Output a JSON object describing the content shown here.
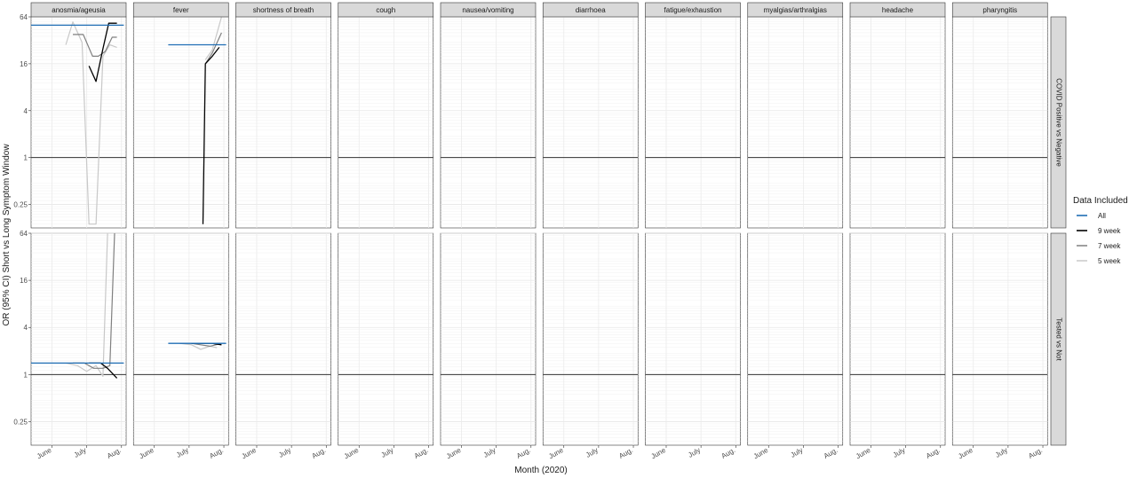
{
  "chart_data": {
    "type": "line",
    "facets": {
      "columns": [
        "anosmia/ageusia",
        "fever",
        "shortness of breath",
        "cough",
        "nausea/vomiting",
        "diarrhoea",
        "fatigue/exhaustion",
        "myalgias/arthralgias",
        "headache",
        "pharyngitis"
      ],
      "rows": [
        "COVID Positive vs Negative",
        "Tested vs Not"
      ]
    },
    "xlabel": "Month (2020)",
    "ylabel": "OR (95% CI) Short vs Long Symptom Window",
    "x_ticks": [
      "June",
      "July",
      "Aug."
    ],
    "x_tick_positions_days": [
      18,
      48,
      78
    ],
    "xlim_days": [
      0,
      82
    ],
    "y_scale": "log2",
    "y_ticks": [
      "0.25",
      "1",
      "4",
      "16",
      "64"
    ],
    "y_tick_values": [
      0.25,
      1,
      4,
      16,
      64
    ],
    "ylim": [
      0.125,
      64
    ],
    "reference_line": 1,
    "legend": {
      "title": "Data Included",
      "position": "right",
      "entries": [
        "All",
        "9 week",
        "7 week",
        "5 week"
      ]
    },
    "series_styles": {
      "All": {
        "color": "#1f6eb4",
        "width": 1.3
      },
      "9 week": {
        "color": "#000000",
        "width": 1.3
      },
      "7 week": {
        "color": "#808080",
        "width": 1.2
      },
      "5 week": {
        "color": "#c8c8c8",
        "width": 1.2
      }
    },
    "x_unit": "days since May 14, 2020 (approx.)",
    "panels": [
      {
        "row": 0,
        "col": 0,
        "series": {
          "All": [
            [
              0,
              50
            ],
            [
              80,
              50
            ]
          ],
          "9 week": [
            [
              50,
              15
            ],
            [
              56,
              9.5
            ],
            [
              62,
              25
            ],
            [
              67,
              53
            ],
            [
              74,
              53
            ]
          ],
          "7 week": [
            [
              36,
              38
            ],
            [
              45,
              38
            ],
            [
              53,
              20
            ],
            [
              58,
              20
            ],
            [
              64,
              23
            ],
            [
              70,
              35
            ],
            [
              74,
              35
            ]
          ],
          "5 week": [
            [
              30,
              28
            ],
            [
              36,
              55
            ],
            [
              44,
              30
            ],
            [
              50,
              0.14
            ],
            [
              56,
              0.14
            ],
            [
              62,
              20
            ],
            [
              68,
              28
            ],
            [
              74,
              26
            ]
          ]
        }
      },
      {
        "row": 0,
        "col": 1,
        "series": {
          "All": [
            [
              30,
              28
            ],
            [
              80,
              28
            ]
          ],
          "9 week": [
            [
              60,
              0.14
            ],
            [
              62,
              16
            ],
            [
              68,
              20
            ],
            [
              74,
              26
            ]
          ],
          "7 week": [
            [
              62,
              16
            ],
            [
              68,
              22
            ],
            [
              76,
              40
            ]
          ],
          "5 week": [
            [
              62,
              18
            ],
            [
              68,
              24
            ],
            [
              76,
              64
            ]
          ]
        }
      },
      {
        "row": 1,
        "col": 0,
        "series": {
          "All": [
            [
              0,
              1.4
            ],
            [
              80,
              1.4
            ]
          ],
          "9 week": [
            [
              50,
              1.4
            ],
            [
              60,
              1.4
            ],
            [
              66,
              1.2
            ],
            [
              74,
              0.9
            ]
          ],
          "7 week": [
            [
              36,
              1.4
            ],
            [
              46,
              1.4
            ],
            [
              54,
              1.2
            ],
            [
              62,
              1.2
            ],
            [
              68,
              1.3
            ],
            [
              72,
              64
            ]
          ],
          "5 week": [
            [
              30,
              1.4
            ],
            [
              40,
              1.3
            ],
            [
              48,
              1.1
            ],
            [
              56,
              1.3
            ],
            [
              62,
              0.95
            ],
            [
              66,
              64
            ]
          ]
        }
      },
      {
        "row": 1,
        "col": 1,
        "series": {
          "All": [
            [
              30,
              2.5
            ],
            [
              80,
              2.5
            ]
          ],
          "9 week": [
            [
              50,
              2.5
            ],
            [
              60,
              2.5
            ],
            [
              68,
              2.5
            ],
            [
              76,
              2.4
            ]
          ],
          "7 week": [
            [
              40,
              2.5
            ],
            [
              50,
              2.5
            ],
            [
              58,
              2.4
            ],
            [
              66,
              2.3
            ],
            [
              76,
              2.5
            ]
          ],
          "5 week": [
            [
              40,
              2.5
            ],
            [
              50,
              2.4
            ],
            [
              58,
              2.1
            ],
            [
              66,
              2.3
            ],
            [
              72,
              2.2
            ]
          ]
        }
      }
    ]
  }
}
